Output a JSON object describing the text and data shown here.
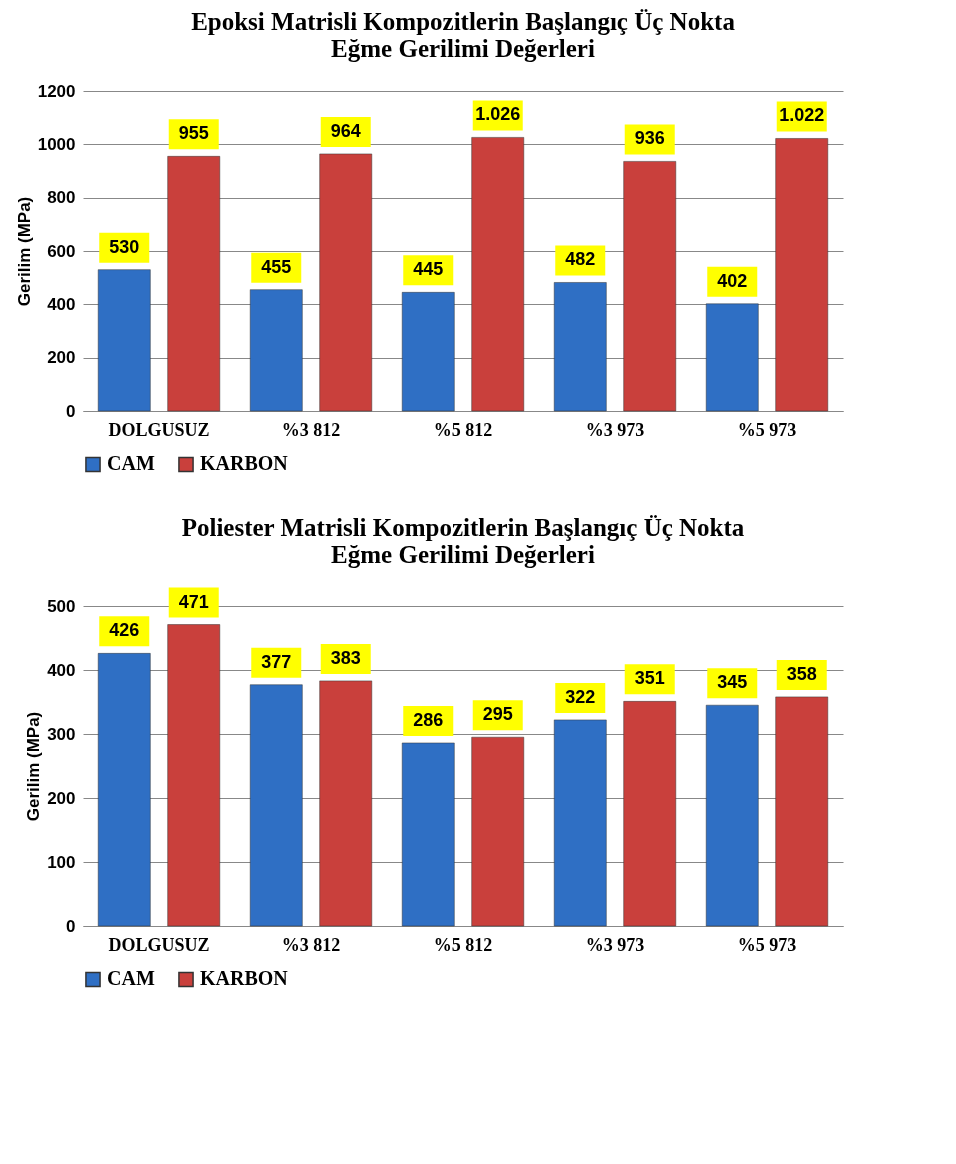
{
  "chart_data": [
    {
      "type": "bar",
      "title": "Epoksi Matrisli Kompozitlerin Başlangıç Üç Nokta Eğme Gerilimi Değerleri",
      "ylabel": "Gerilim (MPa)",
      "categories": [
        "DOLGUSUZ",
        "%3 812",
        "%5 812",
        "%3 973",
        "%5 973"
      ],
      "series": [
        {
          "name": "CAM",
          "color": "#2f6fc4",
          "values": [
            530,
            455,
            445,
            482,
            402
          ],
          "value_labels": [
            "530",
            "455",
            "445",
            "482",
            "402"
          ]
        },
        {
          "name": "KARBON",
          "color": "#c9403c",
          "values": [
            955,
            964,
            1026,
            936,
            1022
          ],
          "value_labels": [
            "955",
            "964",
            "1.026",
            "936",
            "1.022"
          ]
        }
      ],
      "ylim": [
        0,
        1200
      ],
      "yticks": [
        0,
        200,
        400,
        600,
        800,
        {
          "value": 1000,
          "label": "1000"
        },
        {
          "value": 1200,
          "label": "1200"
        }
      ],
      "grid": "y",
      "legend": "bottom"
    },
    {
      "type": "bar",
      "title": "Poliester Matrisli Kompozitlerin Başlangıç Üç Nokta Eğme Gerilimi Değerleri",
      "ylabel": "Gerilim (MPa)",
      "categories": [
        "DOLGUSUZ",
        "%3 812",
        "%5 812",
        "%3 973",
        "%5 973"
      ],
      "series": [
        {
          "name": "CAM",
          "color": "#2f6fc4",
          "values": [
            426,
            377,
            286,
            322,
            345
          ],
          "value_labels": [
            "426",
            "377",
            "286",
            "322",
            "345"
          ]
        },
        {
          "name": "KARBON",
          "color": "#c9403c",
          "values": [
            471,
            383,
            295,
            351,
            358
          ],
          "value_labels": [
            "471",
            "383",
            "295",
            "351",
            "358"
          ]
        }
      ],
      "ylim": [
        0,
        500
      ],
      "yticks": [
        0,
        100,
        200,
        300,
        400,
        500
      ],
      "grid": "y",
      "legend": "bottom"
    }
  ]
}
